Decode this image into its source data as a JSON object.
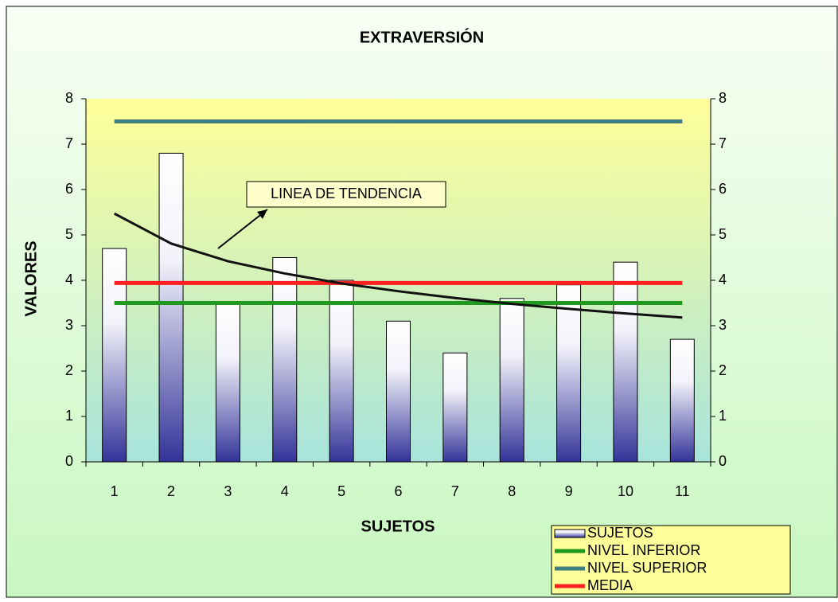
{
  "chart_data": {
    "type": "bar",
    "title": "EXTRAVERSIÓN",
    "x_label": "SUJETOS",
    "y_label": "VALORES",
    "categories": [
      1,
      2,
      3,
      4,
      5,
      6,
      7,
      8,
      9,
      10,
      11
    ],
    "series": [
      {
        "name": "SUJETOS",
        "type": "bar",
        "color": "#333399",
        "values": [
          4.7,
          6.8,
          3.5,
          4.5,
          4.0,
          3.1,
          2.4,
          3.6,
          3.9,
          4.4,
          2.7
        ]
      },
      {
        "name": "NIVEL INFERIOR",
        "type": "line",
        "color": "#1f9a1f",
        "values": [
          3.5,
          3.5,
          3.5,
          3.5,
          3.5,
          3.5,
          3.5,
          3.5,
          3.5,
          3.5,
          3.5
        ]
      },
      {
        "name": "NIVEL SUPERIOR",
        "type": "line",
        "color": "#3f7f7f",
        "values": [
          7.5,
          7.5,
          7.5,
          7.5,
          7.5,
          7.5,
          7.5,
          7.5,
          7.5,
          7.5,
          7.5
        ]
      },
      {
        "name": "MEDIA",
        "type": "line",
        "color": "#ff2020",
        "values": [
          3.94,
          3.94,
          3.94,
          3.94,
          3.94,
          3.94,
          3.94,
          3.94,
          3.94,
          3.94,
          3.94
        ]
      }
    ],
    "trend": {
      "color": "#111111",
      "values": [
        5.47,
        4.81,
        4.42,
        4.15,
        3.93,
        3.76,
        3.61,
        3.48,
        3.37,
        3.27,
        3.18
      ]
    },
    "annotation": "LINEA DE TENDENCIA",
    "ylim": [
      0,
      8
    ],
    "yticks": [
      0,
      1,
      2,
      3,
      4,
      5,
      6,
      7,
      8
    ],
    "y2lim": [
      0,
      8
    ],
    "y2ticks": [
      0,
      1,
      2,
      3,
      4,
      5,
      6,
      7,
      8
    ],
    "legend": "bottom-right"
  }
}
